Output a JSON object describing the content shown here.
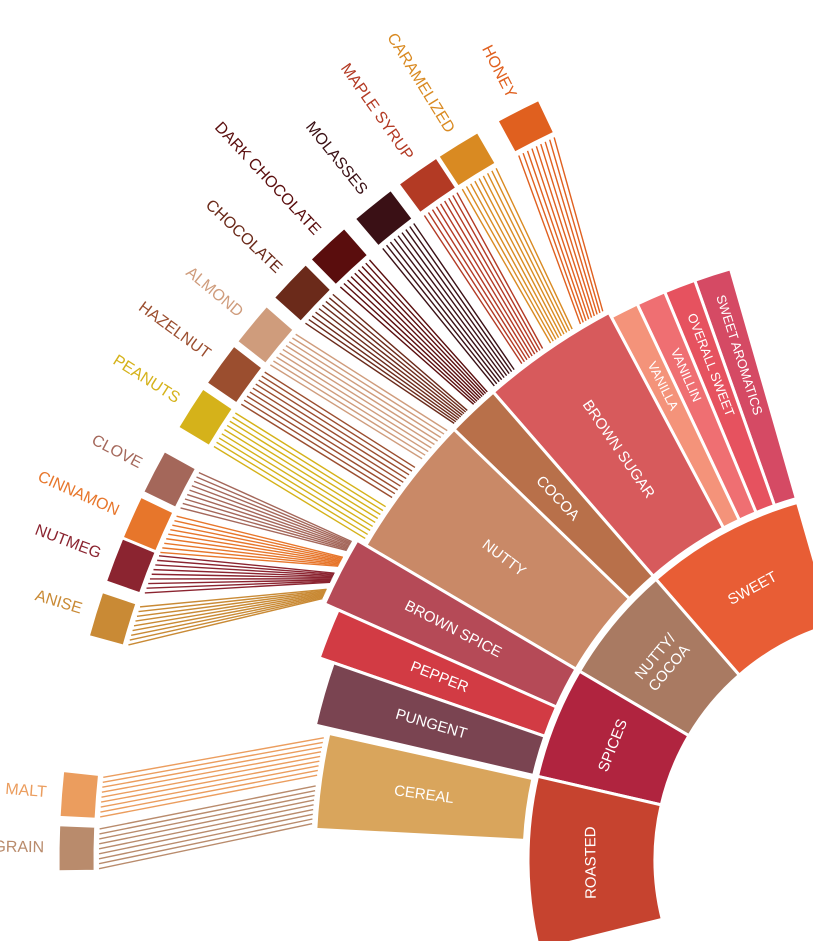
{
  "wheel": {
    "categories": [
      {
        "label": "SWEET",
        "color": "#e85d35",
        "children": [
          {
            "label": "SWEET AROMATICS",
            "color": "#d54a64",
            "children": []
          },
          {
            "label": "OVERALL SWEET",
            "color": "#e6525f",
            "children": []
          },
          {
            "label": "VANILLIN",
            "color": "#ef6f72",
            "children": []
          },
          {
            "label": "VANILLA",
            "color": "#f4937a",
            "children": []
          },
          {
            "label": "BROWN SUGAR",
            "color": "#d75a5c",
            "children": [
              {
                "label": "HONEY",
                "color": "#e0601f"
              },
              {
                "label": "CARAMELIZED",
                "color": "#d98a22"
              },
              {
                "label": "MAPLE SYRUP",
                "color": "#b33a24"
              },
              {
                "label": "MOLASSES",
                "color": "#3a1015"
              }
            ]
          }
        ]
      },
      {
        "label": [
          "NUTTY/",
          "COCOA"
        ],
        "color": "#a97a62",
        "children": [
          {
            "label": "COCOA",
            "color": "#b8704a",
            "children": [
              {
                "label": "DARK CHOCOLATE",
                "color": "#5a0d0d"
              },
              {
                "label": "CHOCOLATE",
                "color": "#6b2a1a"
              }
            ]
          },
          {
            "label": "NUTTY",
            "color": "#c98967",
            "children": [
              {
                "label": "ALMOND",
                "color": "#cf9c7c"
              },
              {
                "label": "HAZELNUT",
                "color": "#9b4e2f"
              },
              {
                "label": "PEANUTS",
                "color": "#d5b21a"
              }
            ]
          }
        ]
      },
      {
        "label": "SPICES",
        "color": "#b0243f",
        "children": [
          {
            "label": "BROWN SPICE",
            "color": "#b54a57",
            "children": [
              {
                "label": "CLOVE",
                "color": "#a4675a"
              },
              {
                "label": "CINNAMON",
                "color": "#e7762b"
              },
              {
                "label": "NUTMEG",
                "color": "#8b2430"
              },
              {
                "label": "ANISE",
                "color": "#c98a35"
              }
            ]
          },
          {
            "label": "PEPPER",
            "color": "#d23b44",
            "children": []
          },
          {
            "label": "PUNGENT",
            "color": "#7a4451",
            "children": []
          }
        ]
      },
      {
        "label": "ROASTED",
        "color": "#c6432f",
        "children": [
          {
            "label": "CEREAL",
            "color": "#d9a55c",
            "children": [
              {
                "label": "MALT",
                "color": "#eb9d5e"
              },
              {
                "label": "GRAIN",
                "color": "#b98b6c"
              }
            ]
          }
        ]
      }
    ]
  }
}
